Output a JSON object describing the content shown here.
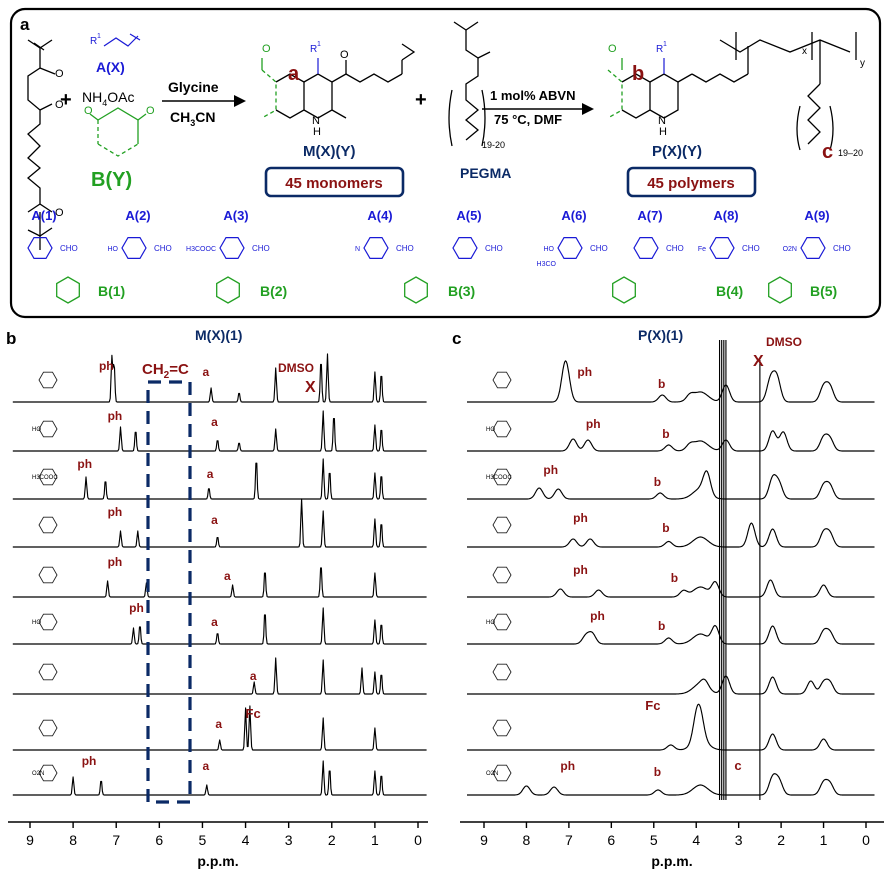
{
  "panels": {
    "a": "a",
    "b": "b",
    "c": "c"
  },
  "scheme": {
    "aldehyde_label": "A(X)",
    "r1_label": "R",
    "r1_sup": "1",
    "plus": "+",
    "ammonium": "NH",
    "ammonium_sub": "4",
    "ammonium_tail": "OAc",
    "diketone_label": "B(Y)",
    "reagent_top": "Glycine",
    "reagent_bottom": "CH",
    "reagent_bottom_sub": "3",
    "reagent_bottom_tail": "CN",
    "site_a": "a",
    "nh": "N",
    "nh_h": "H",
    "o_letter": "O",
    "monomer_label": "M(X)(Y)",
    "monomer_box": "45 monomers",
    "pegma_label": "PEGMA",
    "peg_repeat": "19-20",
    "cond_top": "1 mol% ABVN",
    "cond_bottom": "75 °C, DMF",
    "site_b": "b",
    "site_c": "c",
    "polymer_label": "P(X)(Y)",
    "polymer_box": "45 polymers",
    "polymer_repeat": "19–20",
    "sub_x": "x",
    "sub_y": "y"
  },
  "reagents_a": [
    {
      "label": "A(1)",
      "group": "CHO"
    },
    {
      "label": "A(2)",
      "group": "CHO",
      "sub": "HO"
    },
    {
      "label": "A(3)",
      "group": "CHO",
      "sub": "H3COOC"
    },
    {
      "label": "A(4)",
      "group": "CHO",
      "sub": "N"
    },
    {
      "label": "A(5)",
      "group": "CHO"
    },
    {
      "label": "A(6)",
      "group": "CHO",
      "sub": "HO",
      "sub2": "H3CO"
    },
    {
      "label": "A(7)",
      "group": "CHO"
    },
    {
      "label": "A(8)",
      "group": "CHO",
      "sub": "Fe"
    },
    {
      "label": "A(9)",
      "group": "CHO",
      "sub": "O2N"
    }
  ],
  "reagents_b": [
    "B(1)",
    "B(2)",
    "B(3)",
    "B(4)",
    "B(5)"
  ],
  "spectra_b": {
    "title": "M(X)(1)",
    "xlabel": "p.p.m.",
    "ticks": [
      "9",
      "8",
      "7",
      "6",
      "5",
      "4",
      "3",
      "2",
      "1",
      "0"
    ],
    "alkene_label": "CH",
    "alkene_sub": "2",
    "alkene_tail": "=C",
    "dmso": "DMSO",
    "x_mark": "X",
    "peak_ph": "ph",
    "peak_a": "a",
    "peak_fc": "Fc",
    "substituent_labels": [
      "HO",
      "H3COOC",
      "HO",
      "O2N"
    ]
  },
  "spectra_c": {
    "title": "P(X)(1)",
    "xlabel": "p.p.m.",
    "ticks": [
      "9",
      "8",
      "7",
      "6",
      "5",
      "4",
      "3",
      "2",
      "1",
      "0"
    ],
    "dmso": "DMSO",
    "x_mark": "X",
    "peak_ph": "ph",
    "peak_b": "b",
    "peak_c": "c",
    "peak_fc": "Fc",
    "substituent_labels": [
      "HO",
      "H3COOC",
      "HO",
      "O2N"
    ]
  },
  "colors": {
    "blue": "#1a1ad6",
    "green": "#22a022",
    "navy": "#0b2a66",
    "maroon": "#8a1212"
  }
}
